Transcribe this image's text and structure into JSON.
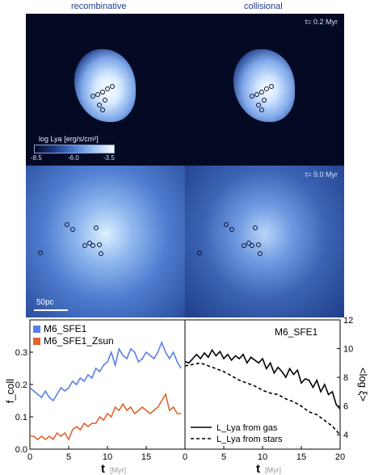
{
  "columns": {
    "left": "recombinative",
    "right": "collisional"
  },
  "panels": {
    "top_time": "t= 0.2 Myr",
    "bottom_time": "t= 9.0 Myr",
    "scalebar": "50pc"
  },
  "colorbar": {
    "label": "log Lya [erg/s/cm²]",
    "ticks": [
      "-8.5",
      "-6.0",
      "-3.5"
    ]
  },
  "chart_data": [
    {
      "type": "line",
      "ylabel": "f_coll",
      "xlabel": "t",
      "xunit": "[Myr]",
      "xlim": [
        0,
        20
      ],
      "ylim": [
        0,
        0.4
      ],
      "xticks": [
        "0",
        "5",
        "10",
        "15"
      ],
      "yticks": [
        "0.0",
        "0.1",
        "0.2",
        "0.3"
      ],
      "legend": "top-left",
      "series": [
        {
          "name": "M6_SFE1",
          "color": "#5a7fe6",
          "x": [
            0,
            0.5,
            1,
            1.5,
            2,
            2.5,
            3,
            3.5,
            4,
            4.5,
            5,
            5.5,
            6,
            6.5,
            7,
            7.5,
            8,
            8.5,
            9,
            9.5,
            10,
            10.5,
            11,
            11.5,
            12,
            12.5,
            13,
            13.5,
            14,
            14.5,
            15,
            15.5,
            16,
            16.5,
            17,
            17.5,
            18,
            18.5,
            19,
            19.5
          ],
          "y": [
            0.19,
            0.18,
            0.17,
            0.16,
            0.18,
            0.16,
            0.15,
            0.17,
            0.19,
            0.18,
            0.19,
            0.21,
            0.2,
            0.22,
            0.21,
            0.23,
            0.22,
            0.25,
            0.24,
            0.26,
            0.27,
            0.3,
            0.26,
            0.31,
            0.29,
            0.28,
            0.31,
            0.3,
            0.27,
            0.28,
            0.3,
            0.29,
            0.28,
            0.3,
            0.33,
            0.3,
            0.28,
            0.3,
            0.27,
            0.25
          ]
        },
        {
          "name": "M6_SFE1_Zsun",
          "color": "#e0642c",
          "x": [
            0,
            0.5,
            1,
            1.5,
            2,
            2.5,
            3,
            3.5,
            4,
            4.5,
            5,
            5.5,
            6,
            6.5,
            7,
            7.5,
            8,
            8.5,
            9,
            9.5,
            10,
            10.5,
            11,
            11.5,
            12,
            12.5,
            13,
            13.5,
            14,
            14.5,
            15,
            15.5,
            16,
            16.5,
            17,
            17.5,
            18,
            18.5,
            19,
            19.5
          ],
          "y": [
            0.04,
            0.04,
            0.03,
            0.04,
            0.03,
            0.04,
            0.03,
            0.05,
            0.04,
            0.05,
            0.03,
            0.06,
            0.07,
            0.06,
            0.08,
            0.07,
            0.08,
            0.08,
            0.1,
            0.09,
            0.11,
            0.1,
            0.13,
            0.12,
            0.14,
            0.12,
            0.13,
            0.11,
            0.12,
            0.13,
            0.12,
            0.11,
            0.12,
            0.13,
            0.15,
            0.17,
            0.12,
            0.13,
            0.11,
            0.11
          ]
        }
      ]
    },
    {
      "type": "line",
      "title": "M6_SFE1",
      "ylabel": "<log ξ>",
      "xlabel": "t",
      "xunit": "[Myr]",
      "xlim": [
        0,
        20
      ],
      "ylim": [
        3,
        12
      ],
      "xticks": [
        "0",
        "5",
        "10",
        "15",
        "20"
      ],
      "yticks": [
        "4",
        "6",
        "8",
        "10",
        "12"
      ],
      "legend": "bottom-left",
      "series": [
        {
          "name": "L_Lya from gas",
          "style": "solid",
          "color": "#000000",
          "x": [
            0,
            0.5,
            1,
            1.5,
            2,
            2.5,
            3,
            3.5,
            4,
            4.5,
            5,
            5.5,
            6,
            6.5,
            7,
            7.5,
            8,
            8.5,
            9,
            9.5,
            10,
            10.5,
            11,
            11.5,
            12,
            12.5,
            13,
            13.5,
            14,
            14.5,
            15,
            15.5,
            16,
            16.5,
            17,
            17.5,
            18,
            18.5,
            19,
            19.5,
            20
          ],
          "y": [
            9.1,
            9.0,
            9.3,
            9.6,
            9.3,
            9.7,
            9.4,
            9.9,
            9.5,
            9.8,
            9.3,
            9.6,
            9.2,
            9.5,
            9.3,
            9.6,
            9.0,
            9.4,
            9.2,
            9.0,
            9.3,
            8.6,
            9.0,
            8.3,
            8.7,
            8.4,
            8.0,
            8.6,
            8.2,
            8.5,
            7.6,
            7.9,
            7.8,
            7.3,
            7.8,
            7.0,
            7.5,
            6.8,
            7.0,
            6.1,
            5.8
          ]
        },
        {
          "name": "L_Lya from stars",
          "style": "dashed",
          "color": "#000000",
          "x": [
            0,
            1,
            2,
            3,
            4,
            5,
            6,
            7,
            8,
            9,
            10,
            11,
            12,
            13,
            14,
            15,
            16,
            17,
            18,
            19,
            20
          ],
          "y": [
            8.8,
            8.9,
            9.0,
            8.8,
            8.6,
            8.4,
            8.1,
            7.8,
            7.6,
            7.4,
            7.1,
            6.9,
            6.8,
            6.5,
            6.3,
            6.0,
            5.6,
            5.4,
            5.0,
            4.6,
            4.0
          ]
        }
      ]
    }
  ]
}
